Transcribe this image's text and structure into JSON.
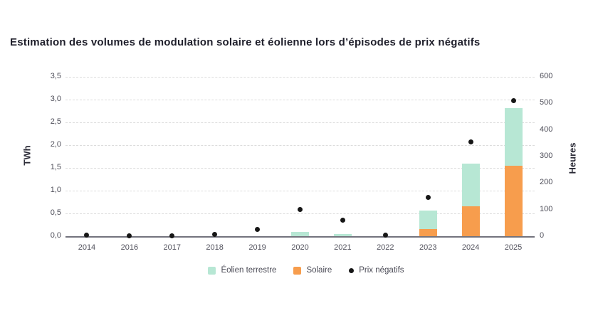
{
  "title": "Estimation des volumes de modulation solaire et éolienne lors d’épisodes de prix négatifs",
  "colors": {
    "eolien": "#b7e7d4",
    "solaire": "#f79d4d",
    "dot": "#161616",
    "grid": "#dcdcdc",
    "axis_line": "#73737d",
    "title_text": "#1f1f2b",
    "tick_text": "#4e4e59"
  },
  "chart_data": {
    "type": "bar",
    "stacked": true,
    "grid": "horizontal dashed lines every 0.5 TWh",
    "legend_position": "bottom-center",
    "categories": [
      "2014",
      "2016",
      "2017",
      "2018",
      "2019",
      "2020",
      "2021",
      "2022",
      "2023",
      "2024",
      "2025"
    ],
    "series": [
      {
        "name": "Solaire",
        "type": "bar",
        "stack_order": "bottom",
        "axis": "left",
        "color": "#f79d4d",
        "values": [
          0,
          0,
          0,
          0,
          0,
          0,
          0,
          0,
          0.15,
          0.65,
          1.55
        ]
      },
      {
        "name": "Éolien terrestre",
        "type": "bar",
        "stack_order": "top",
        "axis": "left",
        "color": "#b7e7d4",
        "values": [
          0,
          0,
          0,
          0,
          0,
          0.09,
          0.05,
          0,
          0.42,
          0.95,
          1.27
        ]
      },
      {
        "name": "Prix négatifs",
        "type": "scatter",
        "axis": "right",
        "color": "#161616",
        "values": [
          5,
          1,
          2,
          8,
          25,
          100,
          60,
          4,
          147,
          355,
          510
        ]
      }
    ],
    "left_axis": {
      "label": "TWh",
      "min": 0,
      "max": 3.5,
      "tick_values": [
        0,
        0.5,
        1,
        1.5,
        2,
        2.5,
        3,
        3.5
      ],
      "tick_labels": [
        "0,0",
        "0,5",
        "1,0",
        "1,5",
        "2,0",
        "2,5",
        "3,0",
        "3,5"
      ]
    },
    "right_axis": {
      "label": "Heures",
      "min": 0,
      "max": 600,
      "tick_values": [
        0,
        100,
        200,
        300,
        400,
        500,
        600
      ],
      "tick_labels": [
        "0",
        "100",
        "200",
        "300",
        "400",
        "500",
        "600"
      ]
    }
  },
  "legend": {
    "items": [
      {
        "label": "Éolien terrestre",
        "swatch": "square",
        "color": "#b7e7d4"
      },
      {
        "label": "Solaire",
        "swatch": "square",
        "color": "#f79d4d"
      },
      {
        "label": "Prix négatifs",
        "swatch": "dot",
        "color": "#161616"
      }
    ]
  }
}
